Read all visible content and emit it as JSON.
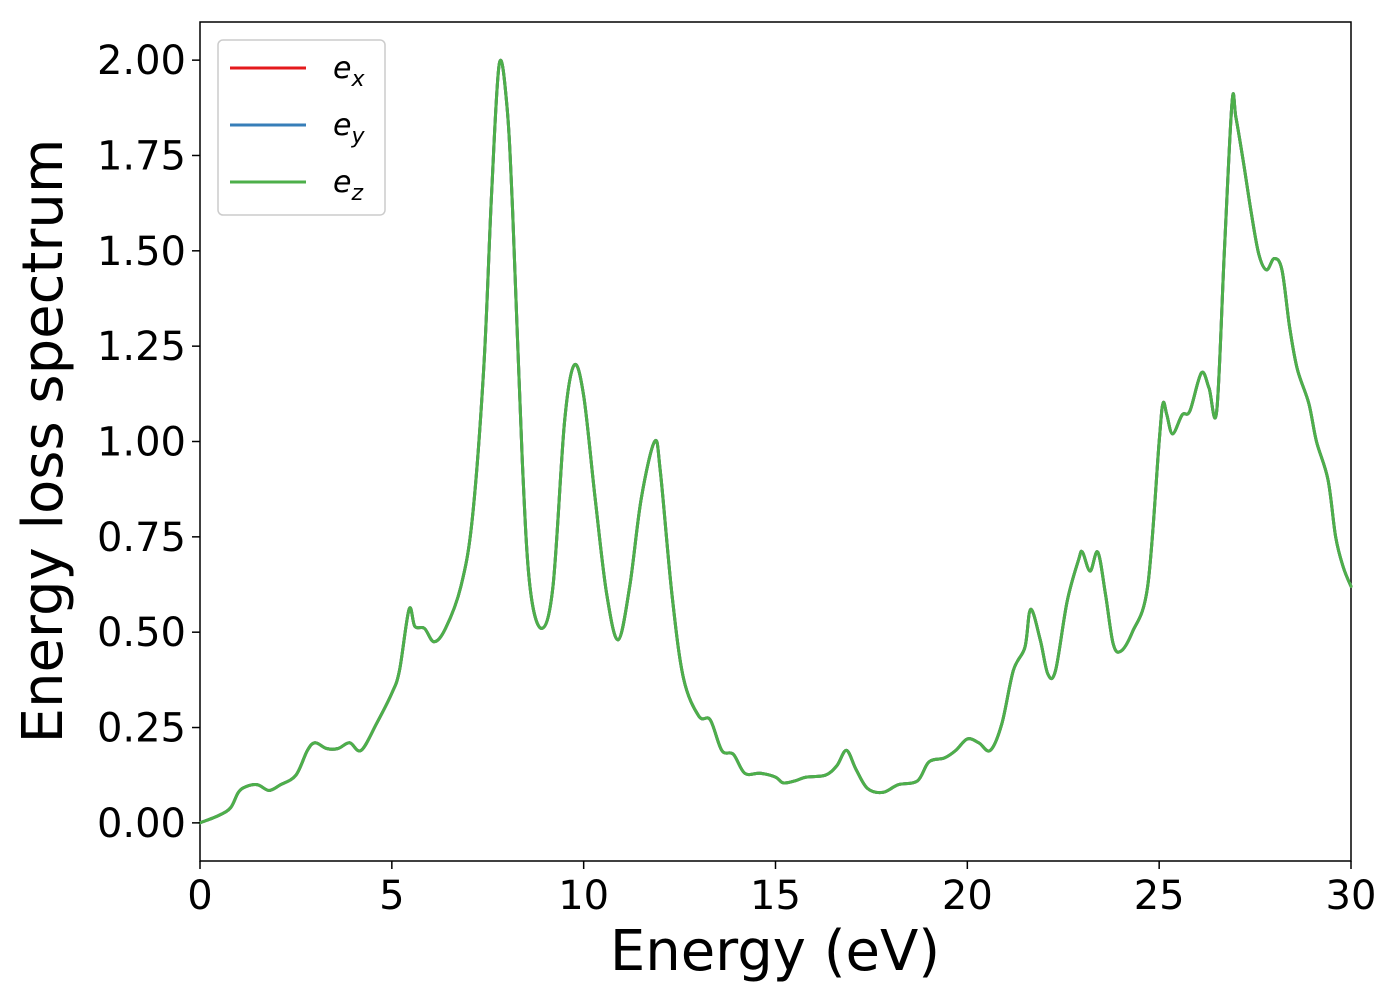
{
  "chart_data": {
    "type": "line",
    "title": "",
    "xlabel": "Energy (eV)",
    "ylabel": "Energy loss spectrum",
    "xlim": [
      0,
      30
    ],
    "ylim": [
      -0.1,
      2.1
    ],
    "xticks": [
      "0",
      "5",
      "10",
      "15",
      "20",
      "25",
      "30"
    ],
    "yticks": [
      "0.00",
      "0.25",
      "0.50",
      "0.75",
      "1.00",
      "1.25",
      "1.50",
      "1.75",
      "2.00"
    ],
    "grid": false,
    "legend_position": "top-left",
    "x": [
      0,
      0.5,
      0.8,
      1.0,
      1.2,
      1.5,
      1.8,
      2.1,
      2.5,
      2.8,
      3.0,
      3.3,
      3.6,
      3.9,
      4.2,
      4.6,
      5.0,
      5.2,
      5.45,
      5.6,
      5.85,
      6.1,
      6.4,
      6.8,
      7.1,
      7.4,
      7.6,
      7.8,
      8.0,
      8.15,
      8.4,
      8.6,
      8.9,
      9.2,
      9.5,
      9.75,
      10.0,
      10.3,
      10.6,
      10.9,
      11.2,
      11.5,
      11.85,
      12.0,
      12.3,
      12.6,
      13.0,
      13.3,
      13.6,
      13.9,
      14.2,
      14.6,
      15.0,
      15.2,
      15.5,
      15.8,
      16.3,
      16.6,
      16.85,
      17.1,
      17.4,
      17.8,
      18.2,
      18.7,
      19.0,
      19.4,
      19.7,
      20.0,
      20.3,
      20.6,
      20.9,
      21.2,
      21.5,
      21.65,
      21.9,
      22.1,
      22.3,
      22.6,
      22.9,
      23.0,
      23.2,
      23.4,
      23.6,
      23.8,
      24.0,
      24.3,
      24.7,
      25.0,
      25.1,
      25.2,
      25.35,
      25.6,
      25.8,
      26.1,
      26.3,
      26.5,
      26.7,
      26.9,
      27.0,
      27.2,
      27.4,
      27.6,
      27.8,
      28.0,
      28.2,
      28.4,
      28.6,
      28.9,
      29.1,
      29.4,
      29.6,
      29.8,
      30.0
    ],
    "series": [
      {
        "name": "e_x",
        "color": "#e41a1c",
        "values": [
          0.0,
          0.02,
          0.04,
          0.08,
          0.095,
          0.1,
          0.085,
          0.1,
          0.125,
          0.19,
          0.21,
          0.195,
          0.195,
          0.21,
          0.19,
          0.26,
          0.34,
          0.4,
          0.56,
          0.515,
          0.51,
          0.475,
          0.51,
          0.62,
          0.8,
          1.2,
          1.65,
          1.99,
          1.88,
          1.6,
          0.95,
          0.62,
          0.51,
          0.62,
          1.05,
          1.2,
          1.12,
          0.85,
          0.6,
          0.48,
          0.62,
          0.85,
          1.0,
          0.92,
          0.6,
          0.38,
          0.28,
          0.27,
          0.19,
          0.18,
          0.13,
          0.13,
          0.12,
          0.105,
          0.11,
          0.12,
          0.125,
          0.15,
          0.19,
          0.14,
          0.09,
          0.08,
          0.1,
          0.11,
          0.16,
          0.17,
          0.19,
          0.22,
          0.21,
          0.19,
          0.26,
          0.4,
          0.46,
          0.56,
          0.48,
          0.39,
          0.4,
          0.58,
          0.69,
          0.71,
          0.66,
          0.71,
          0.6,
          0.47,
          0.45,
          0.5,
          0.62,
          1.0,
          1.1,
          1.07,
          1.02,
          1.07,
          1.08,
          1.18,
          1.14,
          1.08,
          1.5,
          1.89,
          1.85,
          1.73,
          1.6,
          1.49,
          1.45,
          1.48,
          1.45,
          1.3,
          1.19,
          1.1,
          1.0,
          0.9,
          0.75,
          0.67,
          0.62
        ]
      },
      {
        "name": "e_y",
        "color": "#377eb8",
        "values": [
          0.0,
          0.02,
          0.04,
          0.08,
          0.095,
          0.1,
          0.085,
          0.1,
          0.125,
          0.19,
          0.21,
          0.195,
          0.195,
          0.21,
          0.19,
          0.26,
          0.34,
          0.4,
          0.56,
          0.515,
          0.51,
          0.475,
          0.51,
          0.62,
          0.8,
          1.2,
          1.65,
          1.99,
          1.88,
          1.6,
          0.95,
          0.62,
          0.51,
          0.62,
          1.05,
          1.2,
          1.12,
          0.85,
          0.6,
          0.48,
          0.62,
          0.85,
          1.0,
          0.92,
          0.6,
          0.38,
          0.28,
          0.27,
          0.19,
          0.18,
          0.13,
          0.13,
          0.12,
          0.105,
          0.11,
          0.12,
          0.125,
          0.15,
          0.19,
          0.14,
          0.09,
          0.08,
          0.1,
          0.11,
          0.16,
          0.17,
          0.19,
          0.22,
          0.21,
          0.19,
          0.26,
          0.4,
          0.46,
          0.56,
          0.48,
          0.39,
          0.4,
          0.58,
          0.69,
          0.71,
          0.66,
          0.71,
          0.6,
          0.47,
          0.45,
          0.5,
          0.62,
          1.0,
          1.1,
          1.07,
          1.02,
          1.07,
          1.08,
          1.18,
          1.14,
          1.08,
          1.5,
          1.89,
          1.85,
          1.73,
          1.6,
          1.49,
          1.45,
          1.48,
          1.45,
          1.3,
          1.19,
          1.1,
          1.0,
          0.9,
          0.75,
          0.67,
          0.62
        ]
      },
      {
        "name": "e_z",
        "color": "#4daf4a",
        "values": [
          0.0,
          0.02,
          0.04,
          0.08,
          0.095,
          0.1,
          0.085,
          0.1,
          0.125,
          0.19,
          0.21,
          0.195,
          0.195,
          0.21,
          0.19,
          0.26,
          0.34,
          0.4,
          0.56,
          0.515,
          0.51,
          0.475,
          0.51,
          0.62,
          0.8,
          1.2,
          1.65,
          1.99,
          1.88,
          1.6,
          0.95,
          0.62,
          0.51,
          0.62,
          1.05,
          1.2,
          1.12,
          0.85,
          0.6,
          0.48,
          0.62,
          0.85,
          1.0,
          0.92,
          0.6,
          0.38,
          0.28,
          0.27,
          0.19,
          0.18,
          0.13,
          0.13,
          0.12,
          0.105,
          0.11,
          0.12,
          0.125,
          0.15,
          0.19,
          0.14,
          0.09,
          0.08,
          0.1,
          0.11,
          0.16,
          0.17,
          0.19,
          0.22,
          0.21,
          0.19,
          0.26,
          0.4,
          0.46,
          0.56,
          0.48,
          0.39,
          0.4,
          0.58,
          0.69,
          0.71,
          0.66,
          0.71,
          0.6,
          0.47,
          0.45,
          0.5,
          0.62,
          1.0,
          1.1,
          1.07,
          1.02,
          1.07,
          1.08,
          1.18,
          1.14,
          1.08,
          1.5,
          1.89,
          1.85,
          1.73,
          1.6,
          1.49,
          1.45,
          1.48,
          1.45,
          1.3,
          1.19,
          1.1,
          1.0,
          0.9,
          0.75,
          0.67,
          0.62
        ]
      }
    ],
    "legend": [
      {
        "base": "e",
        "sub": "x",
        "color": "#e41a1c"
      },
      {
        "base": "e",
        "sub": "y",
        "color": "#377eb8"
      },
      {
        "base": "e",
        "sub": "z",
        "color": "#4daf4a"
      }
    ]
  }
}
